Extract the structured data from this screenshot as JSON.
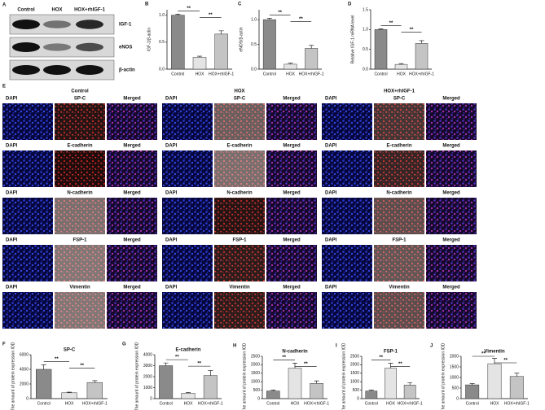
{
  "blot": {
    "label": "A",
    "columns": [
      "Control",
      "HOX",
      "HOX+rhIGF-1"
    ],
    "rows": [
      "IGF-1",
      "eNOS",
      "β-actin"
    ]
  },
  "microscopy": {
    "label": "E",
    "groups": [
      "Control",
      "HOX",
      "HOX+rhIGF-1"
    ],
    "rows": [
      [
        "DAPI",
        "SP-C",
        "Merged"
      ],
      [
        "DAPI",
        "E-cadherin",
        "Merged"
      ],
      [
        "DAPI",
        "N-cadherin",
        "Merged"
      ],
      [
        "DAPI",
        "FSP-1",
        "Merged"
      ],
      [
        "DAPI",
        "Vimentin",
        "Merged"
      ]
    ]
  },
  "chart_data": [
    {
      "type": "bar",
      "label": "B",
      "y_label": "IGF-1/β-actin",
      "categories": [
        "Control",
        "HOX",
        "HOX+rhIGF-1"
      ],
      "values": [
        1.0,
        0.22,
        0.65
      ],
      "errors": [
        0.02,
        0.02,
        0.06
      ],
      "colors": [
        "#8a8a8a",
        "#e4e4e4",
        "#c4c4c4"
      ],
      "ylim": [
        0,
        1.1
      ],
      "yticks": [
        {
          "value": 0,
          "label": "0.0"
        },
        {
          "value": 0.5,
          "label": "0.5"
        },
        {
          "value": 1,
          "label": "1.0"
        }
      ],
      "significance": [
        "**",
        "**"
      ]
    },
    {
      "type": "bar",
      "label": "C",
      "y_label": "eNOS/β-actin",
      "categories": [
        "Control",
        "HOX",
        "HOX+rhIGF-1"
      ],
      "values": [
        1.0,
        0.1,
        0.42
      ],
      "errors": [
        0.03,
        0.02,
        0.06
      ],
      "colors": [
        "#8a8a8a",
        "#e4e4e4",
        "#c4c4c4"
      ],
      "ylim": [
        0,
        1.2
      ],
      "yticks": [
        {
          "value": 0,
          "label": "0.0"
        },
        {
          "value": 0.5,
          "label": "0.5"
        },
        {
          "value": 1,
          "label": "1.0"
        }
      ],
      "significance": [
        "**",
        "**"
      ]
    },
    {
      "type": "bar",
      "label": "D",
      "y_label": "Relative IGF-1 mRNA level",
      "categories": [
        "Control",
        "HOX",
        "HOX+rhIGF-1"
      ],
      "values": [
        1.0,
        0.12,
        0.65
      ],
      "errors": [
        0.02,
        0.02,
        0.07
      ],
      "colors": [
        "#8a8a8a",
        "#e4e4e4",
        "#c4c4c4"
      ],
      "ylim": [
        0,
        1.5
      ],
      "yticks": [
        {
          "value": 0,
          "label": "0.0"
        },
        {
          "value": 0.5,
          "label": "0.5"
        },
        {
          "value": 1,
          "label": "1.0"
        },
        {
          "value": 1.5,
          "label": "1.5"
        }
      ],
      "significance": [
        "**",
        "**"
      ]
    },
    {
      "type": "bar",
      "label": "F",
      "title": "SP-C",
      "y_label": "The amount of protein expression IOD",
      "categories": [
        "Control",
        "HOX",
        "HOX+rhIGF-1"
      ],
      "values": [
        4000,
        800,
        2200
      ],
      "errors": [
        600,
        80,
        250
      ],
      "colors": [
        "#8a8a8a",
        "#e4e4e4",
        "#c4c4c4"
      ],
      "ylim": [
        0,
        6000
      ],
      "yticks": [
        0,
        2000,
        4000,
        6000
      ],
      "significance": [
        "**",
        "**"
      ]
    },
    {
      "type": "bar",
      "label": "G",
      "title": "E-cadherin",
      "y_label": "The amount of protein expression IOD",
      "categories": [
        "Control",
        "HOX",
        "HOX+rhIGF-1"
      ],
      "values": [
        3000,
        500,
        2100
      ],
      "errors": [
        250,
        50,
        450
      ],
      "colors": [
        "#8a8a8a",
        "#e4e4e4",
        "#c4c4c4"
      ],
      "ylim": [
        0,
        4000
      ],
      "yticks": [
        0,
        1000,
        2000,
        3000,
        4000
      ],
      "significance": [
        "**",
        "**"
      ]
    },
    {
      "type": "bar",
      "label": "H",
      "title": "N-cadherin",
      "y_label": "The amount of protein expression IOD",
      "categories": [
        "Control",
        "HOX",
        "HOX+rhIGF-1"
      ],
      "values": [
        450,
        1800,
        900
      ],
      "errors": [
        60,
        300,
        150
      ],
      "colors": [
        "#8a8a8a",
        "#e4e4e4",
        "#c4c4c4"
      ],
      "ylim": [
        0,
        2500
      ],
      "yticks": [
        0,
        500,
        1000,
        1500,
        2000,
        2500
      ],
      "significance": [
        "**",
        "**"
      ]
    },
    {
      "type": "bar",
      "label": "I",
      "title": "FSP-1",
      "y_label": "The amount of protein expression IOD",
      "categories": [
        "Control",
        "HOX",
        "HOX+rhIGF-1"
      ],
      "values": [
        450,
        1800,
        800
      ],
      "errors": [
        50,
        300,
        150
      ],
      "colors": [
        "#8a8a8a",
        "#e4e4e4",
        "#c4c4c4"
      ],
      "ylim": [
        0,
        2500
      ],
      "yticks": [
        0,
        500,
        1000,
        1500,
        2000,
        2500
      ],
      "significance": [
        "**",
        "**"
      ]
    },
    {
      "type": "bar",
      "label": "J",
      "title": "Vimentin",
      "y_label": "The amount of protein expression IOD",
      "categories": [
        "Control",
        "HOX",
        "HOX+rhIGF-1"
      ],
      "values": [
        650,
        1650,
        1050
      ],
      "errors": [
        60,
        250,
        150
      ],
      "colors": [
        "#8a8a8a",
        "#e4e4e4",
        "#c4c4c4"
      ],
      "ylim": [
        0,
        2000
      ],
      "yticks": [
        0,
        500,
        1000,
        1500,
        2000
      ],
      "significance": [
        "**",
        "**"
      ]
    }
  ]
}
